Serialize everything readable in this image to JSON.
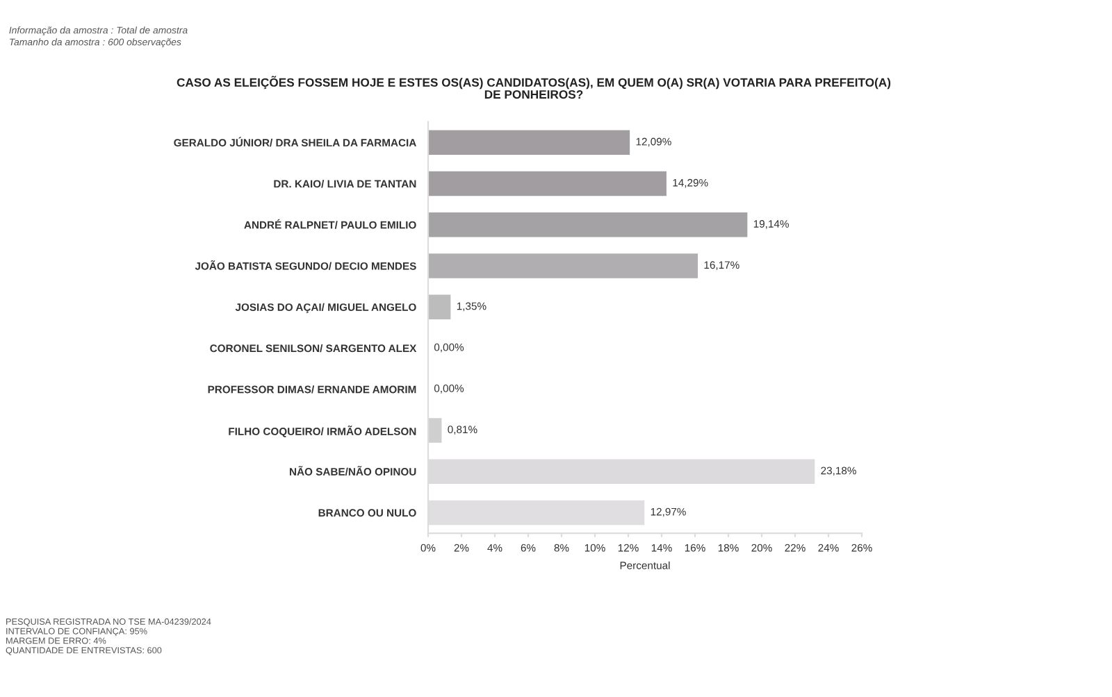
{
  "chart_data": {
    "type": "bar",
    "orientation": "horizontal",
    "title": "CASO AS ELEIÇÕES FOSSEM HOJE E ESTES OS(AS) CANDIDATOS(AS), EM QUEM O(A) SR(A) VOTARIA PARA PREFEITO(A)\nDE PONHEIROS?",
    "xlabel": "Percentual",
    "categories": [
      "GERALDO JÚNIOR/ DRA SHEILA DA FARMACIA",
      "DR. KAIO/ LIVIA DE TANTAN",
      "ANDRÉ RALPNET/ PAULO EMILIO",
      "JOÃO BATISTA SEGUNDO/ DECIO MENDES",
      "JOSIAS DO AÇAI/ MIGUEL ANGELO",
      "CORONEL SENILSON/ SARGENTO ALEX",
      "PROFESSOR DIMAS/ ERNANDE AMORIM",
      "FILHO COQUEIRO/ IRMÃO ADELSON",
      "NÃO SABE/NÃO OPINOU",
      "BRANCO OU NULO"
    ],
    "values": [
      12.09,
      14.29,
      19.14,
      16.17,
      1.35,
      0.0,
      0.0,
      0.81,
      23.18,
      12.97
    ],
    "value_labels": [
      "12,09%",
      "14,29%",
      "19,14%",
      "16,17%",
      "1,35%",
      "0,00%",
      "0,00%",
      "0,81%",
      "23,18%",
      "12,97%"
    ],
    "colors": [
      "#a19da1",
      "#a19da1",
      "#a5a2a5",
      "#b0aeb0",
      "#bcbcbc",
      "#bcbcbc",
      "#c8c8c8",
      "#cfcfcf",
      "#dcdadc",
      "#e0dee0"
    ],
    "xlim": [
      0,
      26
    ],
    "xticks": [
      {
        "value": 0,
        "label": "0%"
      },
      {
        "value": 2,
        "label": "2%"
      },
      {
        "value": 4,
        "label": "4%"
      },
      {
        "value": 6,
        "label": "6%"
      },
      {
        "value": 8,
        "label": "8%"
      },
      {
        "value": 10,
        "label": "10%"
      },
      {
        "value": 12,
        "label": "12%"
      },
      {
        "value": 14,
        "label": "14%"
      },
      {
        "value": 16,
        "label": "16%"
      },
      {
        "value": 18,
        "label": "18%"
      },
      {
        "value": 20,
        "label": "20%"
      },
      {
        "value": 22,
        "label": "22%"
      },
      {
        "value": 24,
        "label": "24%"
      },
      {
        "value": 26,
        "label": "26%"
      }
    ],
    "grid": false,
    "legend": false,
    "annotations": [
      "Informação da amostra : Total de amostra",
      "Tamanho da amostra : 600 observações",
      "PESQUISA REGISTRADA NO TSE MA-04239/2024\nINTERVALO DE CONFIANÇA: 95%\nMARGEM DE ERRO: 4%\nQUANTIDADE DE ENTREVISTAS: 600"
    ]
  }
}
